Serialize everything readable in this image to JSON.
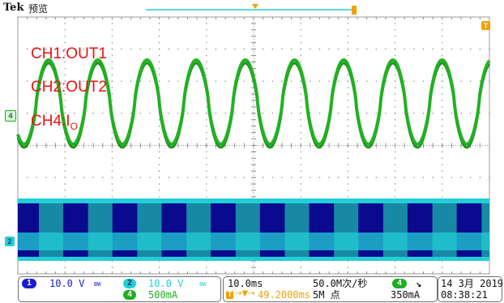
{
  "header": {
    "brand": "Tek",
    "mode": "预览"
  },
  "markers": {
    "ch4_ref": "4",
    "ch2_ref": "2",
    "trigger_ref": "T"
  },
  "captions": {
    "ch1": "CH1:OUT1",
    "ch2": "CH2:OUT2",
    "ch4_prefix": "CH4:I",
    "ch4_sub": "O"
  },
  "channels": {
    "ch1": {
      "num": "1",
      "scale": "10.0 V",
      "bw": "BW"
    },
    "ch2": {
      "num": "2",
      "scale": "10.0 V",
      "bw": "BW"
    },
    "ch4": {
      "num": "4",
      "scale": "500mA"
    }
  },
  "timebase": {
    "scale": "10.0ms",
    "rate": "50.0M次/秒",
    "offset": "49.2000ms",
    "points": "5M 点"
  },
  "trigger": {
    "source": "4",
    "slope": "↘",
    "level": "350mA"
  },
  "datetime": {
    "date": "14 3月 2019",
    "time": "08:38:21"
  },
  "colors": {
    "ch1": "#1a1ad0",
    "ch2": "#22cfd6",
    "ch4": "#1fae20",
    "ch4_trace": "#22b422",
    "trigger": "#f5a000",
    "caption": "#ee1111"
  }
}
